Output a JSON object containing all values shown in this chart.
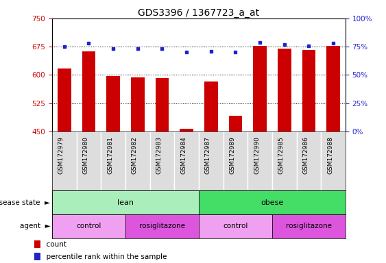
{
  "title": "GDS3396 / 1367723_a_at",
  "samples": [
    "GSM172979",
    "GSM172980",
    "GSM172981",
    "GSM172982",
    "GSM172983",
    "GSM172984",
    "GSM172987",
    "GSM172989",
    "GSM172990",
    "GSM172985",
    "GSM172986",
    "GSM172988"
  ],
  "counts": [
    617,
    663,
    597,
    593,
    592,
    458,
    583,
    492,
    678,
    669,
    666,
    677
  ],
  "percentile_ranks": [
    75,
    78,
    73,
    73,
    73,
    70,
    71,
    70,
    79,
    77,
    76,
    78
  ],
  "ylim_left": [
    450,
    750
  ],
  "yticks_left": [
    450,
    525,
    600,
    675,
    750
  ],
  "ylim_right": [
    0,
    100
  ],
  "yticks_right": [
    0,
    25,
    50,
    75,
    100
  ],
  "bar_color": "#cc0000",
  "dot_color": "#2222cc",
  "disease_state_groups": [
    {
      "label": "lean",
      "start": 0,
      "end": 6,
      "color": "#aaeebb"
    },
    {
      "label": "obese",
      "start": 6,
      "end": 12,
      "color": "#44dd66"
    }
  ],
  "agent_groups": [
    {
      "label": "control",
      "start": 0,
      "end": 3,
      "color": "#f0a0f0"
    },
    {
      "label": "rosiglitazone",
      "start": 3,
      "end": 6,
      "color": "#dd55dd"
    },
    {
      "label": "control",
      "start": 6,
      "end": 9,
      "color": "#f0a0f0"
    },
    {
      "label": "rosiglitazone",
      "start": 9,
      "end": 12,
      "color": "#dd55dd"
    }
  ],
  "legend_count_color": "#cc0000",
  "legend_dot_color": "#2222cc",
  "title_fontsize": 10,
  "tick_fontsize": 7.5,
  "background_color": "#ffffff",
  "plot_bg_color": "#ffffff",
  "tick_label_color_left": "#cc0000",
  "tick_label_color_right": "#2222cc",
  "xlabel_bg_color": "#cccccc",
  "xlabel_fontsize": 6.5
}
